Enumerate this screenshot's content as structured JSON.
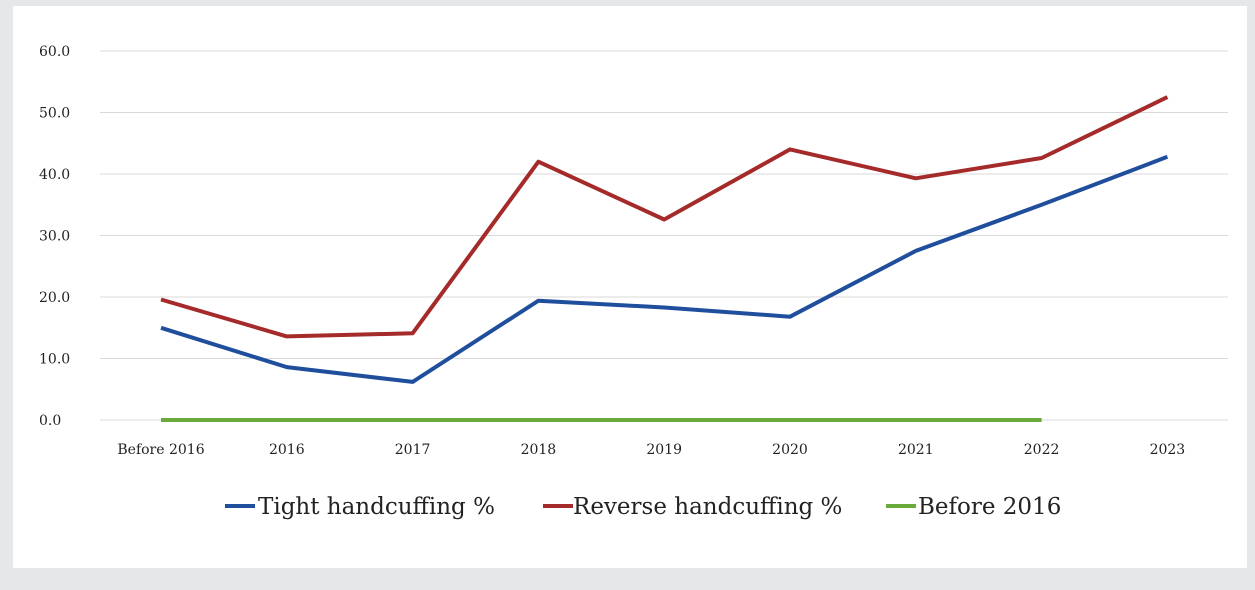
{
  "chart_data": {
    "type": "line",
    "categories": [
      "Before 2016",
      "2016",
      "2017",
      "2018",
      "2019",
      "2020",
      "2021",
      "2022",
      "2023"
    ],
    "ylim": [
      0,
      60
    ],
    "yticks": [
      "0.0",
      "10.0",
      "20.0",
      "30.0",
      "40.0",
      "50.0",
      "60.0"
    ],
    "grid": true,
    "legend_position": "bottom",
    "series": [
      {
        "name": "Tight handcuffing %",
        "color": "#1f4e9c",
        "values": [
          15.0,
          8.6,
          6.2,
          19.4,
          18.3,
          16.8,
          27.5,
          35.0,
          42.8
        ]
      },
      {
        "name": "Reverse handcuffing %",
        "color": "#a52a2a",
        "values": [
          19.6,
          13.6,
          14.1,
          42.0,
          32.6,
          44.0,
          39.3,
          42.6,
          52.5
        ]
      },
      {
        "name": "Before 2016",
        "color": "#6aaa3a",
        "values": [
          0,
          0,
          0,
          0,
          0,
          0,
          0,
          0,
          null
        ]
      }
    ]
  }
}
